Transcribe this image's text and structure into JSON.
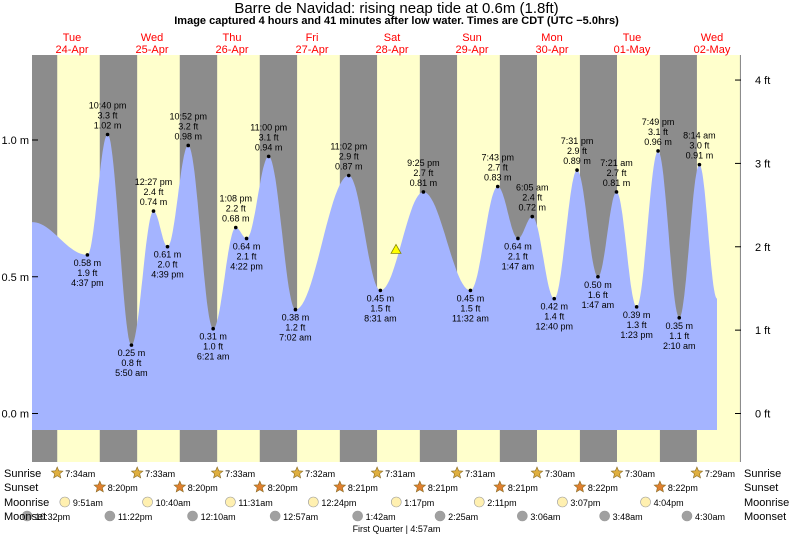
{
  "title": "Barre de Navidad: rising  neap tide at 0.6m (1.8ft)",
  "subtitle": "Image captured 4 hours and 41 minutes after low water. Times are CDT (UTC −5.0hrs)",
  "colors": {
    "night": "#8c8c8c",
    "day": "#ffffcc",
    "tide_fill": "#a4b4ff",
    "day_label": "#ff0000",
    "sun_icon": "#e0b040",
    "sunset_icon": "#e08030",
    "moonrise_icon": "#fff0b0",
    "moonset_icon": "#a0a0a0"
  },
  "chart_data": {
    "type": "area",
    "title": "Barre de Navidad: rising  neap tide at 0.6m (1.8ft)",
    "x_unit": "hours since Tue 24-Apr 00:00 CDT",
    "y_unit": "m",
    "ylim_m": [
      -0.07,
      1.3
    ],
    "left_ticks": [
      "0.0 m",
      "0.5 m",
      "1.0 m"
    ],
    "left_tick_values": [
      0.0,
      0.5,
      1.0
    ],
    "right_ticks": [
      "0 ft",
      "1 ft",
      "2 ft",
      "3 ft",
      "4 ft"
    ],
    "right_tick_values_ft": [
      0,
      1,
      2,
      3,
      4
    ],
    "days": [
      {
        "name": "Tue",
        "date": "24-Apr"
      },
      {
        "name": "Wed",
        "date": "25-Apr"
      },
      {
        "name": "Thu",
        "date": "26-Apr"
      },
      {
        "name": "Fri",
        "date": "27-Apr"
      },
      {
        "name": "Sat",
        "date": "28-Apr"
      },
      {
        "name": "Sun",
        "date": "29-Apr"
      },
      {
        "name": "Mon",
        "date": "30-Apr"
      },
      {
        "name": "Tue",
        "date": "01-May"
      },
      {
        "name": "Wed",
        "date": "02-May"
      }
    ],
    "extremes": [
      {
        "t": 0.0,
        "h": 0.7,
        "lines": []
      },
      {
        "t": 16.62,
        "h": 0.58,
        "kind": "low",
        "lines": [
          "0.58 m",
          "1.9 ft",
          "4:37 pm"
        ]
      },
      {
        "t": 22.67,
        "h": 1.02,
        "kind": "high",
        "lines": [
          "10:40 pm",
          "3.3 ft",
          "1.02 m"
        ]
      },
      {
        "t": 29.83,
        "h": 0.25,
        "kind": "low",
        "lines": [
          "0.25 m",
          "0.8 ft",
          "5:50 am"
        ]
      },
      {
        "t": 36.45,
        "h": 0.74,
        "kind": "high",
        "lines": [
          "12:27 pm",
          "2.4 ft",
          "0.74 m"
        ]
      },
      {
        "t": 40.65,
        "h": 0.61,
        "kind": "low",
        "lines": [
          "0.61 m",
          "2.0 ft",
          "4:39 pm"
        ]
      },
      {
        "t": 46.87,
        "h": 0.98,
        "kind": "high",
        "lines": [
          "10:52 pm",
          "3.2 ft",
          "0.98 m"
        ]
      },
      {
        "t": 54.35,
        "h": 0.31,
        "kind": "low",
        "lines": [
          "0.31 m",
          "1.0 ft",
          "6:21 am"
        ]
      },
      {
        "t": 61.13,
        "h": 0.68,
        "kind": "high",
        "lines": [
          "1:08 pm",
          "2.2 ft",
          "0.68 m"
        ]
      },
      {
        "t": 64.37,
        "h": 0.64,
        "kind": "low",
        "lines": [
          "0.64 m",
          "2.1 ft",
          "4:22 pm"
        ]
      },
      {
        "t": 71.0,
        "h": 0.94,
        "kind": "high",
        "lines": [
          "11:00 pm",
          "3.1 ft",
          "0.94 m"
        ]
      },
      {
        "t": 79.03,
        "h": 0.38,
        "kind": "low",
        "lines": [
          "0.38 m",
          "1.2 ft",
          "7:02 am"
        ]
      },
      {
        "t": 95.03,
        "h": 0.87,
        "kind": "high",
        "lines": [
          "11:02 pm",
          "2.9 ft",
          "0.87 m"
        ]
      },
      {
        "t": 104.52,
        "h": 0.45,
        "kind": "low",
        "lines": [
          "0.45 m",
          "1.5 ft",
          "8:31 am"
        ]
      },
      {
        "t": 117.42,
        "h": 0.81,
        "kind": "high",
        "lines": [
          "9:25 pm",
          "2.7 ft",
          "0.81 m"
        ]
      },
      {
        "t": 131.53,
        "h": 0.45,
        "kind": "low",
        "lines": [
          "0.45 m",
          "1.5 ft",
          "11:32 am"
        ]
      },
      {
        "t": 139.72,
        "h": 0.83,
        "kind": "high",
        "lines": [
          "7:43 pm",
          "2.7 ft",
          "0.83 m"
        ]
      },
      {
        "t": 145.78,
        "h": 0.64,
        "kind": "low",
        "lines": [
          "0.64 m",
          "2.1 ft",
          "1:47 am"
        ]
      },
      {
        "t": 150.08,
        "h": 0.72,
        "kind": "high",
        "lines": [
          "6:05 am",
          "2.4 ft",
          "0.72 m"
        ]
      },
      {
        "t": 156.67,
        "h": 0.42,
        "kind": "low",
        "lines": [
          "0.42 m",
          "1.4 ft",
          "12:40 pm"
        ]
      },
      {
        "t": 163.52,
        "h": 0.89,
        "kind": "high",
        "lines": [
          "7:31 pm",
          "2.9 ft",
          "0.89 m"
        ]
      },
      {
        "t": 169.78,
        "h": 0.5,
        "kind": "low",
        "lines": [
          "0.50 m",
          "1.6 ft",
          "1:47 am"
        ]
      },
      {
        "t": 175.35,
        "h": 0.81,
        "kind": "high",
        "lines": [
          "7:21 am",
          "2.7 ft",
          "0.81 m"
        ]
      },
      {
        "t": 181.38,
        "h": 0.39,
        "kind": "low",
        "lines": [
          "0.39 m",
          "1.3 ft",
          "1:23 pm"
        ]
      },
      {
        "t": 187.82,
        "h": 0.96,
        "kind": "high",
        "lines": [
          "7:49 pm",
          "3.1 ft",
          "0.96 m"
        ]
      },
      {
        "t": 194.17,
        "h": 0.35,
        "kind": "low",
        "lines": [
          "0.35 m",
          "1.1 ft",
          "2:10 am"
        ]
      },
      {
        "t": 200.23,
        "h": 0.91,
        "kind": "high",
        "lines": [
          "8:14 am",
          "3.0 ft",
          "0.91 m"
        ]
      },
      {
        "t": 205.5,
        "h": 0.42,
        "lines": []
      }
    ],
    "now_marker": {
      "t": 109.2,
      "h": 0.6
    },
    "daylight": [
      {
        "rise": 7.57,
        "set": 20.33
      },
      {
        "rise": 31.55,
        "set": 44.33
      },
      {
        "rise": 55.55,
        "set": 68.33
      },
      {
        "rise": 79.53,
        "set": 92.35
      },
      {
        "rise": 103.52,
        "set": 116.35
      },
      {
        "rise": 127.52,
        "set": 140.35
      },
      {
        "rise": 151.5,
        "set": 164.37
      },
      {
        "rise": 175.5,
        "set": 188.37
      },
      {
        "rise": 199.48,
        "set": 212.37
      }
    ]
  },
  "rows": {
    "sunrise_label": "Sunrise",
    "sunset_label": "Sunset",
    "moonrise_label": "Moonrise",
    "moonset_label": "Moonset",
    "sunrise": [
      {
        "t": 7.57,
        "text": "7:34am"
      },
      {
        "t": 31.55,
        "text": "7:33am"
      },
      {
        "t": 55.55,
        "text": "7:33am"
      },
      {
        "t": 79.53,
        "text": "7:32am"
      },
      {
        "t": 103.52,
        "text": "7:31am"
      },
      {
        "t": 127.52,
        "text": "7:31am"
      },
      {
        "t": 151.5,
        "text": "7:30am"
      },
      {
        "t": 175.5,
        "text": "7:30am"
      },
      {
        "t": 199.48,
        "text": "7:29am"
      }
    ],
    "sunset": [
      {
        "t": 20.33,
        "text": "8:20pm"
      },
      {
        "t": 44.33,
        "text": "8:20pm"
      },
      {
        "t": 68.33,
        "text": "8:20pm"
      },
      {
        "t": 92.35,
        "text": "8:21pm"
      },
      {
        "t": 116.35,
        "text": "8:21pm"
      },
      {
        "t": 140.35,
        "text": "8:21pm"
      },
      {
        "t": 164.37,
        "text": "8:22pm"
      },
      {
        "t": 188.37,
        "text": "8:22pm"
      }
    ],
    "moonrise": [
      {
        "t": 9.85,
        "text": "9:51am"
      },
      {
        "t": 34.67,
        "text": "10:40am"
      },
      {
        "t": 59.52,
        "text": "11:31am"
      },
      {
        "t": 84.4,
        "text": "12:24pm"
      },
      {
        "t": 109.28,
        "text": "1:17pm"
      },
      {
        "t": 134.18,
        "text": "2:11pm"
      },
      {
        "t": 159.12,
        "text": "3:07pm"
      },
      {
        "t": 184.07,
        "text": "4:04pm"
      }
    ],
    "moonset": [
      {
        "t": -1.47,
        "text": "10:32pm"
      },
      {
        "t": 23.37,
        "text": "11:22pm"
      },
      {
        "t": 48.17,
        "text": "12:10am"
      },
      {
        "t": 72.95,
        "text": "12:57am"
      },
      {
        "t": 97.7,
        "text": "1:42am"
      },
      {
        "t": 122.42,
        "text": "2:25am"
      },
      {
        "t": 147.1,
        "text": "3:06am"
      },
      {
        "t": 171.8,
        "text": "3:48am"
      },
      {
        "t": 196.5,
        "text": "4:30am"
      }
    ],
    "phase": "First Quarter | 4:57am"
  }
}
